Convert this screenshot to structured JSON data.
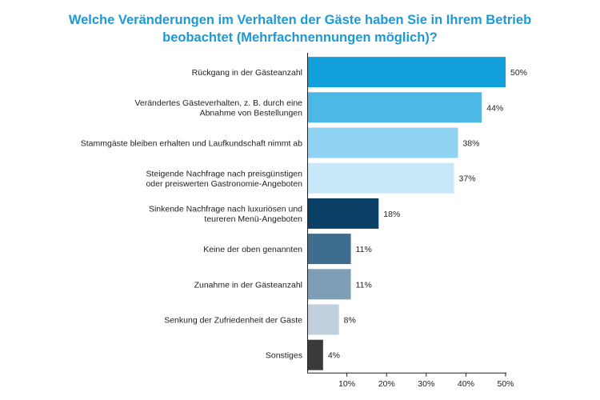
{
  "title_lines": [
    "Welche Veränderungen im Verhalten der Gäste haben Sie in Ihrem Betrieb",
    "beobachtet (Mehrfachnennungen möglich)?"
  ],
  "chart_data": {
    "type": "bar",
    "orientation": "horizontal",
    "title": "Welche Veränderungen im Verhalten der Gäste haben Sie in Ihrem Betrieb beobachtet (Mehrfachnennungen möglich)?",
    "categories": [
      [
        "Rückgang in der Gästeanzahl"
      ],
      [
        "Verändertes Gästeverhalten, z. B. durch eine",
        "Abnahme von Bestellungen"
      ],
      [
        "Stammgäste bleiben erhalten und Laufkundschaft nimmt ab"
      ],
      [
        "Steigende Nachfrage nach preisgünstigen",
        "oder preiswerten Gastronomie-Angeboten"
      ],
      [
        "Sinkende Nachfrage nach luxuriösen und",
        "teureren Menü-Angeboten"
      ],
      [
        "Keine der oben genannten"
      ],
      [
        "Zunahme in der Gästeanzahl"
      ],
      [
        "Senkung der Zufriedenheit der Gäste"
      ],
      [
        "Sonstiges"
      ]
    ],
    "values": [
      50,
      44,
      38,
      37,
      18,
      11,
      11,
      8,
      4
    ],
    "value_labels": [
      "50%",
      "44%",
      "38%",
      "37%",
      "18%",
      "11%",
      "11%",
      "8%",
      "4%"
    ],
    "colors": [
      "#12a0dd",
      "#4bb8e6",
      "#8fd3f2",
      "#c7e8f9",
      "#0a3f66",
      "#3f6d8f",
      "#7e9eb6",
      "#bfcfdb",
      "#3a3a3a"
    ],
    "xlim": [
      0,
      50
    ],
    "xticks": [
      10,
      20,
      30,
      40,
      50
    ],
    "xtick_labels": [
      "10%",
      "20%",
      "30%",
      "40%",
      "50%"
    ],
    "xlabel": "",
    "ylabel": "",
    "grid": false
  }
}
